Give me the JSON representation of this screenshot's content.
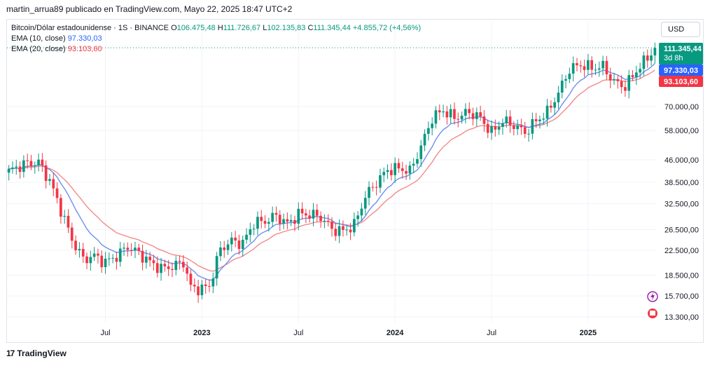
{
  "header": {
    "published": "martin_arrua89 publicado en TradingView.com, Mayo 22, 2025 18:47 UTC+2"
  },
  "legend": {
    "symbol": "Bitcoin/Dólar estadounidense · 1S · BINANCE",
    "ohlc": [
      {
        "k": "O",
        "v": "106.475,48"
      },
      {
        "k": "H",
        "v": "111.726,67"
      },
      {
        "k": "L",
        "v": "102.135,83"
      },
      {
        "k": "C",
        "v": "111.345,44"
      }
    ],
    "change": "+4.855,72 (+4,56%)",
    "ema10": {
      "label": "EMA (10, close)",
      "value": "97.330,03"
    },
    "ema20": {
      "label": "EMA (20, close)",
      "value": "93.103,60"
    }
  },
  "toolbar": {
    "currency": "USD"
  },
  "price_tags": {
    "last": "111.345,44",
    "countdown": "3d 8h",
    "ema10": "97.330,03",
    "ema20": "93.103,60"
  },
  "colors": {
    "up": "#089981",
    "down": "#f23645",
    "ema10": "#2962ff",
    "ema20": "#f23645",
    "ema20_line": "#f28b8b",
    "ema10_line": "#6e8ff0"
  },
  "footer": {
    "brand": "TradingView"
  },
  "chart_data": {
    "type": "candlestick",
    "scale": "log",
    "x_ticks": [
      "Jul",
      "2023",
      "Jul",
      "2024",
      "Jul",
      "2025"
    ],
    "y_ticks": [
      13300,
      15700,
      18500,
      22500,
      26500,
      32500,
      38500,
      46000,
      58000,
      70000
    ],
    "y_tick_labels": [
      "13.300,00",
      "15.700,00",
      "18.500,00",
      "22.500,00",
      "26.500,00",
      "32.500,00",
      "38.500,00",
      "46.000,00",
      "58.000,00",
      "70.000,00"
    ],
    "x_tick_weeks": [
      26,
      52,
      78,
      104,
      130,
      156
    ],
    "anchors": [
      [
        0,
        42000
      ],
      [
        4,
        44500
      ],
      [
        8,
        45000
      ],
      [
        11,
        39000
      ],
      [
        14,
        31000
      ],
      [
        17,
        24500
      ],
      [
        20,
        21000
      ],
      [
        23,
        21500
      ],
      [
        26,
        20500
      ],
      [
        29,
        21500
      ],
      [
        32,
        23200
      ],
      [
        35,
        22000
      ],
      [
        38,
        20500
      ],
      [
        41,
        19500
      ],
      [
        44,
        19800
      ],
      [
        47,
        20500
      ],
      [
        49,
        16800
      ],
      [
        52,
        16600
      ],
      [
        54,
        17000
      ],
      [
        57,
        22800
      ],
      [
        60,
        24200
      ],
      [
        63,
        23800
      ],
      [
        66,
        28000
      ],
      [
        69,
        28300
      ],
      [
        72,
        29600
      ],
      [
        75,
        27700
      ],
      [
        78,
        30000
      ],
      [
        81,
        29900
      ],
      [
        84,
        29300
      ],
      [
        87,
        26600
      ],
      [
        90,
        26200
      ],
      [
        93,
        27500
      ],
      [
        96,
        34500
      ],
      [
        99,
        38500
      ],
      [
        102,
        42500
      ],
      [
        105,
        43000
      ],
      [
        108,
        42000
      ],
      [
        111,
        51000
      ],
      [
        114,
        64000
      ],
      [
        117,
        68000
      ],
      [
        120,
        64000
      ],
      [
        124,
        67000
      ],
      [
        127,
        64000
      ],
      [
        130,
        57000
      ],
      [
        133,
        62500
      ],
      [
        136,
        60500
      ],
      [
        139,
        57000
      ],
      [
        142,
        62500
      ],
      [
        145,
        67000
      ],
      [
        148,
        78000
      ],
      [
        151,
        94000
      ],
      [
        154,
        97500
      ],
      [
        157,
        95000
      ],
      [
        160,
        96000
      ],
      [
        163,
        85000
      ],
      [
        166,
        82000
      ],
      [
        169,
        93000
      ],
      [
        172,
        103000
      ],
      [
        174,
        111345
      ]
    ],
    "total_weeks": 175
  }
}
